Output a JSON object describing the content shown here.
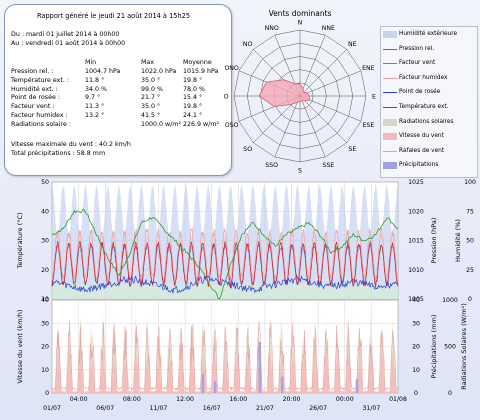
{
  "report": {
    "title": "Rapport généré le jeudi 21 août 2014 à 15h25",
    "from": "Du : mardi 01 juillet 2014 à 00h00",
    "to": "Au : vendredi 01 août 2014 à 00h00",
    "headers": [
      "Min",
      "Max",
      "Moyenne"
    ],
    "rows": [
      {
        "label": "Pression rel. :",
        "min": "1004.7 hPa",
        "max": "1022.0 hPa",
        "avg": "1015.9 hPa"
      },
      {
        "label": "Température ext. :",
        "min": "11.8 °",
        "max": "35.0 °",
        "avg": "19.8 °"
      },
      {
        "label": "Humidité ext. :",
        "min": "34.0 %",
        "max": "99.0 %",
        "avg": "78.0 %"
      },
      {
        "label": "Point de rosée :",
        "min": "9.7 °",
        "max": "21.7 °",
        "avg": "15.4 °"
      },
      {
        "label": "Facteur vent :",
        "min": "11.3 °",
        "max": "35.0 °",
        "avg": "19.8 °"
      },
      {
        "label": "Facteur humidex :",
        "min": "13.2 °",
        "max": "41.5 °",
        "avg": "24.1 °"
      },
      {
        "label": "Radiations solaire :",
        "min": "",
        "max": "1000.0 w/m²",
        "avg": "226.9 w/m²"
      }
    ],
    "wind_max": "Vitesse maximale du vent : 40.2 km/h",
    "rain_total": "Total précipitations : 58.8 mm"
  },
  "legend": [
    {
      "label": "Humidité extérieure",
      "color": "#c8d4ef",
      "kind": "area"
    },
    {
      "label": "Pression rel.",
      "color": "#2e9a2e",
      "kind": "line"
    },
    {
      "label": "Facteur vent",
      "color": "#4f86d8",
      "kind": "line"
    },
    {
      "label": "Facteur humidex",
      "color": "#f0a0a0",
      "kind": "line"
    },
    {
      "label": "Point de rosée",
      "color": "#2a3ed6",
      "kind": "line"
    },
    {
      "label": "Température ext.",
      "color": "#e02020",
      "kind": "line"
    },
    {
      "label": "Radiations solaires",
      "color": "#d8d8c8",
      "kind": "area"
    },
    {
      "label": "Vitesse du vent",
      "color": "#f6b8b8",
      "kind": "area"
    },
    {
      "label": "Rafales de vent",
      "color": "#e8a0a0",
      "kind": "line"
    },
    {
      "label": "Précipitations",
      "color": "#a0a0e8",
      "kind": "area"
    }
  ],
  "chart_data": [
    {
      "type": "radar",
      "title": "Vents dominants",
      "directions": [
        "N",
        "NNE",
        "NE",
        "ENE",
        "E",
        "ESE",
        "SE",
        "SSE",
        "S",
        "SSO",
        "SO",
        "OSO",
        "O",
        "ONO",
        "NO",
        "NNO"
      ],
      "values": [
        0.18,
        0.12,
        0.08,
        0.12,
        0.14,
        0.16,
        0.1,
        0.08,
        0.08,
        0.1,
        0.18,
        0.42,
        0.62,
        0.55,
        0.35,
        0.2
      ],
      "rlim": [
        0,
        1
      ],
      "fill_color": "#f2a8b8"
    },
    {
      "type": "line",
      "x_ticks": [
        "01/07",
        "04:00",
        "06/07",
        "08:00",
        "11/07",
        "12:00",
        "16/07",
        "16:00",
        "21/07",
        "20:00",
        "26/07",
        "00:00",
        "31/07",
        "01/08"
      ],
      "x_range": [
        0,
        31
      ],
      "left_axis": {
        "label": "Température (°C)",
        "range": [
          10,
          50
        ],
        "ticks": [
          10,
          20,
          30,
          40,
          50
        ]
      },
      "right_axis_1": {
        "label": "Pression (hPa)",
        "range": [
          1005,
          1025
        ],
        "ticks": [
          1005,
          1010,
          1015,
          1020,
          1025
        ]
      },
      "right_axis_2": {
        "label": "Humidité (%)",
        "range": [
          0,
          100
        ],
        "ticks": [
          0,
          25,
          50,
          75,
          100
        ]
      },
      "series": [
        {
          "name": "Humidité extérieure",
          "axis": "right_axis_2",
          "daily_min": 55,
          "daily_max": 97
        },
        {
          "name": "Pression rel.",
          "axis": "right_axis_1",
          "values": [
            1016,
            1017,
            1020,
            1020,
            1016,
            1012,
            1009,
            1013,
            1018,
            1019,
            1017,
            1015,
            1013,
            1011,
            1008,
            1005,
            1011,
            1016,
            1018,
            1016,
            1014,
            1016,
            1017,
            1018,
            1016,
            1013,
            1014,
            1016,
            1015,
            1016,
            1019,
            1017
          ]
        },
        {
          "name": "Température ext.",
          "axis": "left",
          "daily_min": 15,
          "daily_max": 29
        },
        {
          "name": "Facteur humidex",
          "axis": "left",
          "daily_min": 17,
          "daily_max": 33
        },
        {
          "name": "Point de rosée",
          "axis": "left",
          "values": [
            16,
            15,
            14,
            13,
            14,
            15,
            16,
            17,
            16,
            15,
            14,
            13,
            14,
            16,
            17,
            16,
            15,
            14,
            13,
            14,
            15,
            16,
            17,
            16,
            15,
            14,
            15,
            16,
            15,
            14,
            15,
            15
          ]
        },
        {
          "name": "Facteur vent",
          "axis": "left",
          "daily_min": 15,
          "daily_max": 28
        }
      ]
    },
    {
      "type": "area",
      "x_ticks": [
        "01/07",
        "04:00",
        "06/07",
        "08:00",
        "11/07",
        "12:00",
        "16/07",
        "16:00",
        "21/07",
        "20:00",
        "26/07",
        "00:00",
        "31/07",
        "01/08"
      ],
      "left_axis": {
        "label": "Vitesse du vent (km/h)",
        "range": [
          0,
          40
        ],
        "ticks": [
          0,
          10,
          20,
          30,
          40
        ]
      },
      "right_axis_1": {
        "label": "Précipitations (mm)",
        "range": [
          0,
          40
        ],
        "ticks": [
          0,
          10,
          20,
          30,
          40
        ]
      },
      "right_axis_2": {
        "label": "Radiations Solaires (W/m²)",
        "range": [
          0,
          1000
        ],
        "ticks": [
          0,
          500,
          1000
        ]
      },
      "series": [
        {
          "name": "Radiations solaires",
          "axis": "right_axis_2",
          "daily_peak": 850
        },
        {
          "name": "Vitesse du vent",
          "axis": "left",
          "daily_peak": 22
        },
        {
          "name": "Rafales de vent",
          "axis": "left",
          "daily_peak": 32
        },
        {
          "name": "Précipitations",
          "axis": "right_axis_1",
          "events": [
            {
              "day": 13.5,
              "value": 8
            },
            {
              "day": 14.6,
              "value": 5
            },
            {
              "day": 18.6,
              "value": 22
            },
            {
              "day": 20.6,
              "value": 7
            },
            {
              "day": 27.3,
              "value": 6
            }
          ]
        }
      ]
    }
  ]
}
